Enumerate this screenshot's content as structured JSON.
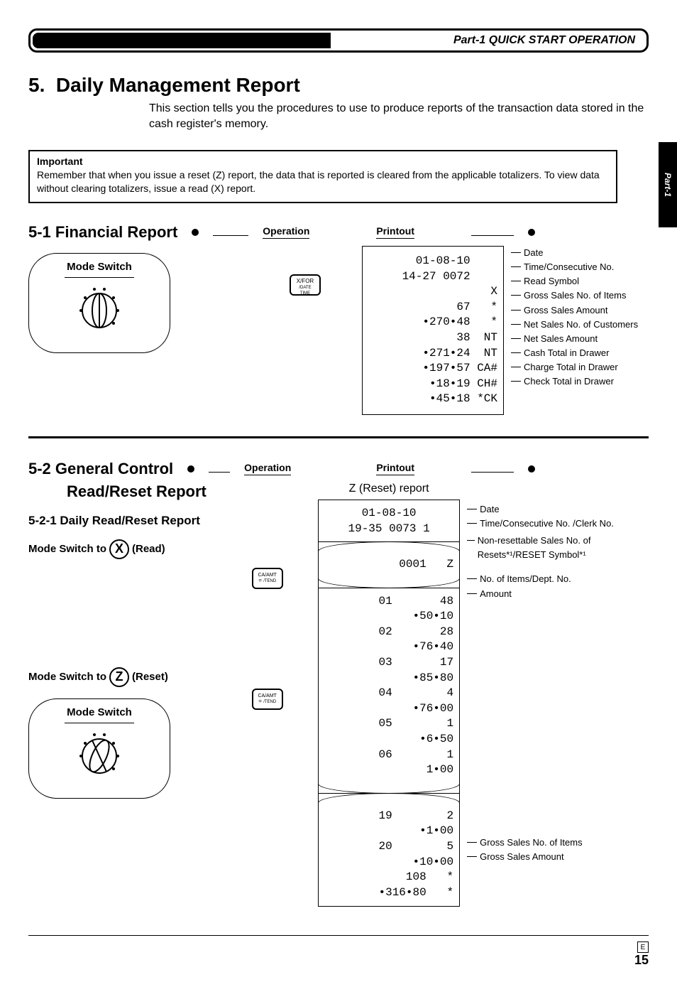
{
  "header": {
    "title": "Part-1 QUICK START OPERATION"
  },
  "sideTab": "Part-1",
  "main": {
    "num": "5.",
    "title": "Daily Management Report",
    "intro": "This section tells you the procedures to use to produce reports of the transaction data stored in the cash register's memory."
  },
  "important": {
    "head": "Important",
    "body": "Remember that when you issue a reset (Z) report, the data that is reported is cleared from the applicable totalizers. To view data without clearing totalizers, issue a read (X) report."
  },
  "s51": {
    "title": "5-1  Financial Report",
    "operation": "Operation",
    "printoutLabel": "Printout",
    "modeSwitch": "Mode Switch",
    "key": "X/FOR\n/DATE\nTIME",
    "lines": [
      {
        "v": "01-08-10",
        "s": "",
        "a": "Date"
      },
      {
        "v": "14-27 0072",
        "s": "",
        "a": "Time/Consecutive No."
      },
      {
        "v": "",
        "s": "X",
        "a": "Read Symbol"
      },
      {
        "v": "67",
        "s": "*",
        "a": "Gross Sales No. of Items"
      },
      {
        "v": "•270•48",
        "s": "*",
        "a": "Gross Sales Amount"
      },
      {
        "v": "38",
        "s": "NT",
        "a": "Net Sales No. of Customers"
      },
      {
        "v": "•271•24",
        "s": "NT",
        "a": "Net Sales Amount"
      },
      {
        "v": "•197•57",
        "s": "CA#",
        "a": "Cash Total in Drawer"
      },
      {
        "v": "•18•19",
        "s": "CH#",
        "a": "Charge Total in Drawer"
      },
      {
        "v": "•45•18",
        "s": "*CK",
        "a": "Check Total in Drawer"
      }
    ]
  },
  "s52": {
    "title1": "5-2  General Control",
    "title2": "Read/Reset Report",
    "sub": "5-2-1  Daily Read/Reset Report",
    "operation": "Operation",
    "printoutLabel": "Printout",
    "zReport": "Z (Reset) report",
    "modeX": "Mode Switch to",
    "readX": "(Read)",
    "modeZ": "Mode Switch to",
    "readZ": "(Reset)",
    "modeSwitch": "Mode Switch",
    "key": "CA/AMT\n= /TEND",
    "head1": {
      "date": "01-08-10",
      "time": "19-35 0073 1"
    },
    "annotHead": [
      "Date",
      "Time/Consecutive No. /Clerk No."
    ],
    "nonReset": {
      "v": "0001",
      "s": "Z",
      "a": "Non-resettable Sales No. of Resets*¹/RESET Symbol*¹"
    },
    "deptAnnot": [
      "No. of Items/Dept. No.",
      "Amount"
    ],
    "dept1": [
      "01       48",
      "    •50•10",
      "02       28",
      "    •76•40",
      "03       17",
      "    •85•80",
      "04        4",
      "    •76•00",
      "05        1",
      "     •6•50",
      "06        1",
      "     1•00"
    ],
    "dept2": [
      "19        2",
      "     •1•00",
      "20        5",
      "    •10•00",
      "       108   *",
      "   •316•80   *"
    ],
    "grossAnnot": [
      "Gross Sales No. of Items",
      "Gross Sales Amount"
    ]
  },
  "footer": {
    "e": "E",
    "page": "15"
  }
}
